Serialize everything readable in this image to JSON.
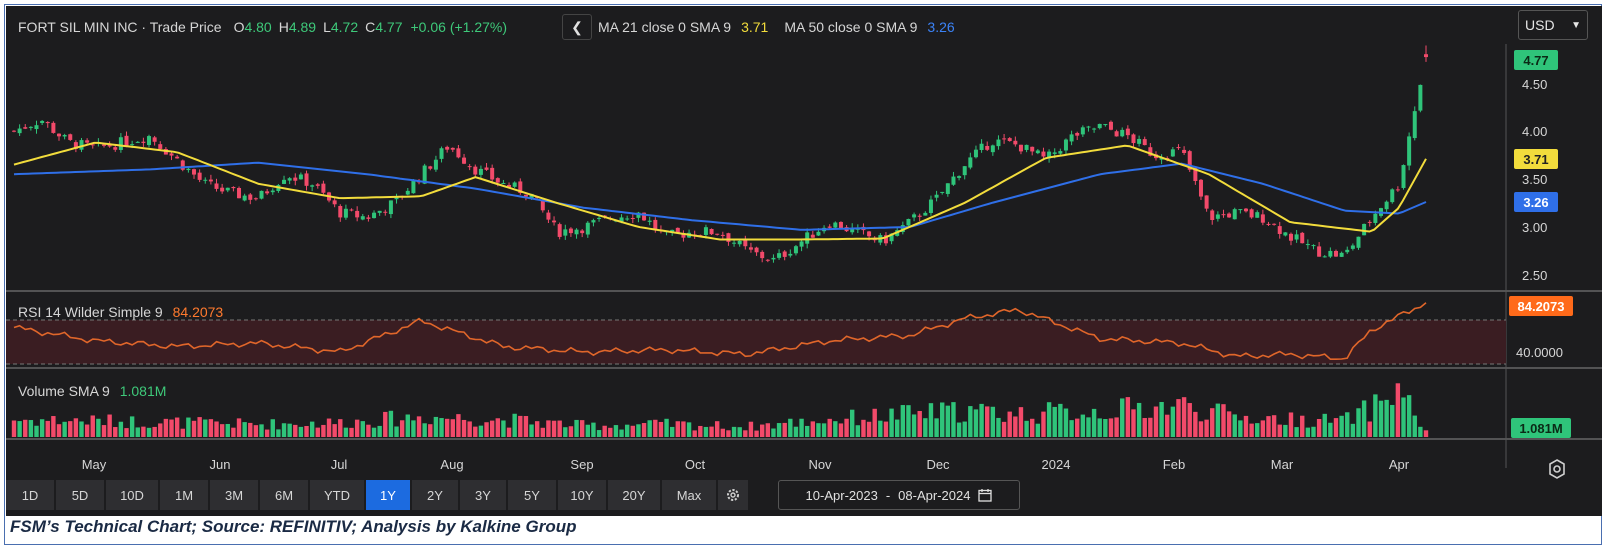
{
  "header": {
    "instrument": "FORT SIL MIN INC · Trade Price",
    "o_label": "O",
    "o_value": "4.80",
    "h_label": "H",
    "h_value": "4.89",
    "l_label": "L",
    "l_value": "4.72",
    "c_label": "C",
    "c_value": "4.77",
    "change": "+0.06 (+1.27%)",
    "ma21_label": "MA 21 close 0 SMA 9",
    "ma21_value": "3.71",
    "ma50_label": "MA 50 close 0 SMA 9",
    "ma50_value": "3.26",
    "back_icon": "chevron-left-icon",
    "currency": "USD"
  },
  "colors": {
    "up": "#2fc47a",
    "down": "#f24a6a",
    "ma21": "#f2dc3c",
    "ma50": "#2f6fe8",
    "rsi": "#e0662a",
    "background": "#1c1c1e"
  },
  "price_axis": {
    "ticks": [
      "4.50",
      "4.00",
      "3.50",
      "3.00",
      "2.50"
    ],
    "last_price_badge": "4.77",
    "ma21_badge": "3.71",
    "ma50_badge": "3.26"
  },
  "rsi": {
    "label": "RSI 14 Wilder Simple 9",
    "value": "84.2073",
    "badge": "84.2073",
    "tick": "40.0000"
  },
  "volume": {
    "label": "Volume SMA 9",
    "value": "1.081M",
    "badge": "1.081M"
  },
  "time_axis": {
    "months": [
      "May",
      "Jun",
      "Jul",
      "Aug",
      "Sep",
      "Oct",
      "Nov",
      "Dec",
      "2024",
      "Feb",
      "Mar",
      "Apr"
    ]
  },
  "range_buttons": [
    "1D",
    "5D",
    "10D",
    "1M",
    "3M",
    "6M",
    "YTD",
    "1Y",
    "2Y",
    "3Y",
    "5Y",
    "10Y",
    "20Y",
    "Max"
  ],
  "active_range": "1Y",
  "settings_icon": "gear-icon",
  "date_range": {
    "from": "10-Apr-2023",
    "separator": "-",
    "to": "08-Apr-2024",
    "calendar_icon": "calendar-icon"
  },
  "axis_settings_icon": "settings-icon",
  "caption": "FSM’s Technical Chart; Source: REFINITIV; Analysis by Kalkine Group",
  "chart_data": [
    {
      "type": "candlestick",
      "title": "FORT SIL MIN INC · Trade Price",
      "x_range": [
        "10-Apr-2023",
        "08-Apr-2024"
      ],
      "ylim": [
        2.3,
        4.9
      ],
      "yticks": [
        2.5,
        3.0,
        3.5,
        4.0,
        4.5
      ],
      "close_path": [
        [
          "10-Apr-2023",
          4.0
        ],
        [
          "17-Apr-2023",
          4.12
        ],
        [
          "24-Apr-2023",
          3.88
        ],
        [
          "01-May-2023",
          3.82
        ],
        [
          "08-May-2023",
          3.88
        ],
        [
          "15-May-2023",
          3.95
        ],
        [
          "22-May-2023",
          3.7
        ],
        [
          "29-May-2023",
          3.45
        ],
        [
          "05-Jun-2023",
          3.35
        ],
        [
          "12-Jun-2023",
          3.3
        ],
        [
          "19-Jun-2023",
          3.55
        ],
        [
          "26-Jun-2023",
          3.45
        ],
        [
          "03-Jul-2023",
          3.15
        ],
        [
          "10-Jul-2023",
          3.1
        ],
        [
          "17-Jul-2023",
          3.25
        ],
        [
          "24-Jul-2023",
          3.55
        ],
        [
          "31-Jul-2023",
          3.85
        ],
        [
          "07-Aug-2023",
          3.6
        ],
        [
          "14-Aug-2023",
          3.45
        ],
        [
          "21-Aug-2023",
          3.35
        ],
        [
          "28-Aug-2023",
          2.95
        ],
        [
          "04-Sep-2023",
          3.0
        ],
        [
          "11-Sep-2023",
          3.1
        ],
        [
          "18-Sep-2023",
          3.15
        ],
        [
          "25-Sep-2023",
          2.9
        ],
        [
          "02-Oct-2023",
          2.95
        ],
        [
          "09-Oct-2023",
          2.95
        ],
        [
          "16-Oct-2023",
          2.75
        ],
        [
          "23-Oct-2023",
          2.65
        ],
        [
          "30-Oct-2023",
          2.85
        ],
        [
          "06-Nov-2023",
          3.05
        ],
        [
          "13-Nov-2023",
          2.95
        ],
        [
          "20-Nov-2023",
          2.85
        ],
        [
          "27-Nov-2023",
          3.05
        ],
        [
          "04-Dec-2023",
          3.3
        ],
        [
          "11-Dec-2023",
          3.65
        ],
        [
          "18-Dec-2023",
          3.9
        ],
        [
          "25-Dec-2023",
          3.85
        ],
        [
          "01-Jan-2024",
          3.7
        ],
        [
          "08-Jan-2024",
          3.95
        ],
        [
          "15-Jan-2024",
          4.05
        ],
        [
          "22-Jan-2024",
          3.95
        ],
        [
          "29-Jan-2024",
          3.75
        ],
        [
          "05-Feb-2024",
          3.8
        ],
        [
          "12-Feb-2024",
          3.1
        ],
        [
          "19-Feb-2024",
          3.15
        ],
        [
          "26-Feb-2024",
          3.1
        ],
        [
          "04-Mar-2024",
          2.9
        ],
        [
          "11-Mar-2024",
          2.75
        ],
        [
          "18-Mar-2024",
          2.7
        ],
        [
          "25-Mar-2024",
          3.1
        ],
        [
          "01-Apr-2024",
          3.45
        ],
        [
          "08-Apr-2024",
          4.77
        ]
      ],
      "last": {
        "open": 4.8,
        "high": 4.89,
        "low": 4.72,
        "close": 4.77
      }
    },
    {
      "type": "line",
      "name": "MA 21 close 0 SMA 9",
      "color": "#f2dc3c",
      "points": [
        [
          "10-Apr-2023",
          3.65
        ],
        [
          "01-May-2023",
          3.88
        ],
        [
          "22-May-2023",
          3.78
        ],
        [
          "12-Jun-2023",
          3.45
        ],
        [
          "03-Jul-2023",
          3.3
        ],
        [
          "24-Jul-2023",
          3.32
        ],
        [
          "07-Aug-2023",
          3.52
        ],
        [
          "28-Aug-2023",
          3.25
        ],
        [
          "18-Sep-2023",
          3.0
        ],
        [
          "09-Oct-2023",
          2.87
        ],
        [
          "30-Oct-2023",
          2.87
        ],
        [
          "20-Nov-2023",
          2.88
        ],
        [
          "11-Dec-2023",
          3.25
        ],
        [
          "01-Jan-2024",
          3.72
        ],
        [
          "22-Jan-2024",
          3.85
        ],
        [
          "12-Feb-2024",
          3.55
        ],
        [
          "04-Mar-2024",
          3.05
        ],
        [
          "25-Mar-2024",
          2.95
        ],
        [
          "01-Apr-2024",
          3.2
        ],
        [
          "08-Apr-2024",
          3.71
        ]
      ]
    },
    {
      "type": "line",
      "name": "MA 50 close 0 SMA 9",
      "color": "#2f6fe8",
      "points": [
        [
          "10-Apr-2023",
          3.55
        ],
        [
          "15-May-2023",
          3.6
        ],
        [
          "12-Jun-2023",
          3.67
        ],
        [
          "10-Jul-2023",
          3.55
        ],
        [
          "07-Aug-2023",
          3.4
        ],
        [
          "04-Sep-2023",
          3.2
        ],
        [
          "02-Oct-2023",
          3.07
        ],
        [
          "30-Oct-2023",
          2.97
        ],
        [
          "27-Nov-2023",
          3.0
        ],
        [
          "18-Dec-2023",
          3.25
        ],
        [
          "15-Jan-2024",
          3.55
        ],
        [
          "05-Feb-2024",
          3.66
        ],
        [
          "26-Feb-2024",
          3.45
        ],
        [
          "18-Mar-2024",
          3.17
        ],
        [
          "01-Apr-2024",
          3.14
        ],
        [
          "08-Apr-2024",
          3.26
        ]
      ]
    },
    {
      "type": "line",
      "name": "RSI 14 Wilder Simple 9",
      "color": "#e0662a",
      "last_value": 84.2073,
      "points": [
        [
          "10-Apr-2023",
          62
        ],
        [
          "01-May-2023",
          50
        ],
        [
          "22-May-2023",
          45
        ],
        [
          "12-Jun-2023",
          48
        ],
        [
          "03-Jul-2023",
          40
        ],
        [
          "24-Jul-2023",
          68
        ],
        [
          "14-Aug-2023",
          45
        ],
        [
          "04-Sep-2023",
          40
        ],
        [
          "25-Sep-2023",
          42
        ],
        [
          "16-Oct-2023",
          38
        ],
        [
          "06-Nov-2023",
          50
        ],
        [
          "27-Nov-2023",
          55
        ],
        [
          "11-Dec-2023",
          70
        ],
        [
          "25-Dec-2023",
          78
        ],
        [
          "15-Jan-2024",
          52
        ],
        [
          "05-Feb-2024",
          48
        ],
        [
          "19-Feb-2024",
          36
        ],
        [
          "04-Mar-2024",
          38
        ],
        [
          "18-Mar-2024",
          34
        ],
        [
          "25-Mar-2024",
          60
        ],
        [
          "01-Apr-2024",
          72
        ],
        [
          "08-Apr-2024",
          84.2073
        ]
      ]
    },
    {
      "type": "bar",
      "name": "Volume SMA 9",
      "last_value": "1.081M",
      "relative_levels": [
        [
          "10-Apr-2023",
          0.3
        ],
        [
          "01-May-2023",
          0.28
        ],
        [
          "22-May-2023",
          0.25
        ],
        [
          "12-Jun-2023",
          0.22
        ],
        [
          "03-Jul-2023",
          0.25
        ],
        [
          "24-Jul-2023",
          0.35
        ],
        [
          "14-Aug-2023",
          0.3
        ],
        [
          "04-Sep-2023",
          0.2
        ],
        [
          "25-Sep-2023",
          0.22
        ],
        [
          "16-Oct-2023",
          0.18
        ],
        [
          "06-Nov-2023",
          0.3
        ],
        [
          "27-Nov-2023",
          0.4
        ],
        [
          "11-Dec-2023",
          0.45
        ],
        [
          "25-Dec-2023",
          0.4
        ],
        [
          "15-Jan-2024",
          0.45
        ],
        [
          "05-Feb-2024",
          0.55
        ],
        [
          "19-Feb-2024",
          0.35
        ],
        [
          "04-Mar-2024",
          0.3
        ],
        [
          "18-Mar-2024",
          0.28
        ],
        [
          "25-Mar-2024",
          0.5
        ],
        [
          "01-Apr-2024",
          0.85
        ],
        [
          "08-Apr-2024",
          0.1
        ]
      ]
    }
  ]
}
